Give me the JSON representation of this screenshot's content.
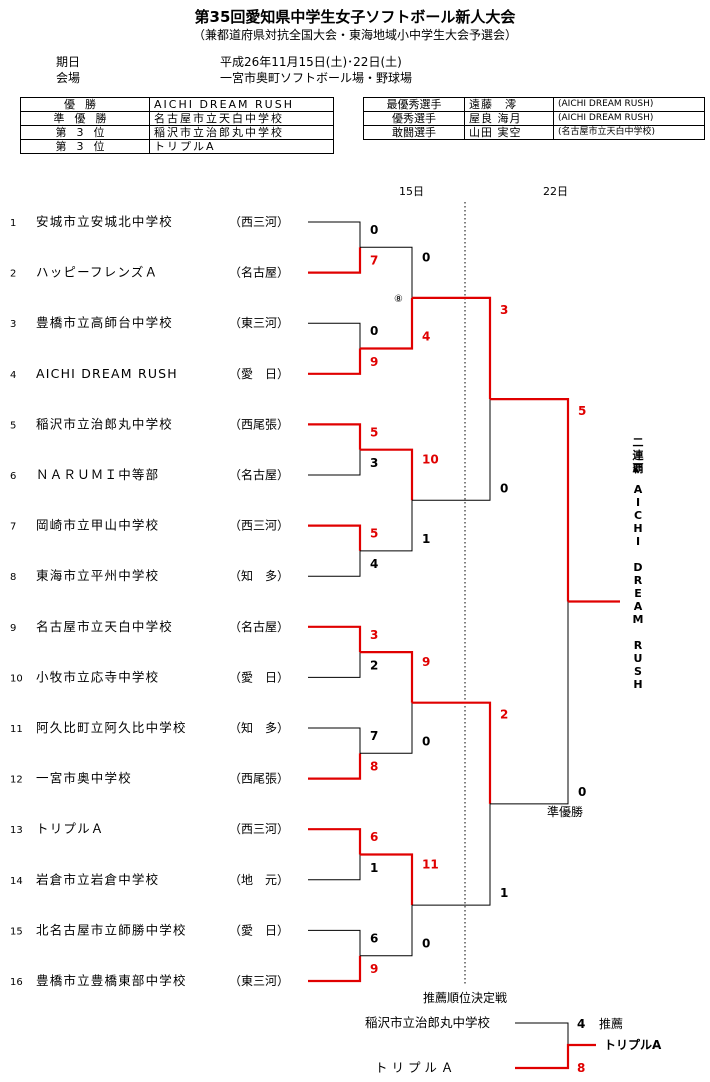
{
  "header": {
    "title": "第35回愛知県中学生女子ソフトボール新人大会",
    "subtitle": "（兼都道府県対抗全国大会・東海地域小中学生大会予選会）",
    "period_label": "期日",
    "period_value": "平成26年11月15日(土)･22日(土)",
    "venue_label": "会場",
    "venue_value": "一宮市奥町ソフトボール場・野球場"
  },
  "results": [
    {
      "rank": "優勝",
      "team": "AICHI DREAM RUSH"
    },
    {
      "rank": "準優勝",
      "team": "名古屋市立天白中学校"
    },
    {
      "rank": "第3位",
      "team": "稲沢市立治郎丸中学校"
    },
    {
      "rank": "第3位",
      "team": "トリプルA"
    }
  ],
  "awards": [
    {
      "award": "最優秀選手",
      "player": "遠藤　澪",
      "team": "(AICHI DREAM RUSH)"
    },
    {
      "award": "優秀選手",
      "player": "屋良 海月",
      "team": "(AICHI DREAM RUSH)"
    },
    {
      "award": "敢闘選手",
      "player": "山田 実空",
      "team": "(名古屋市立天白中学校)"
    }
  ],
  "day_labels": {
    "day1": "15日",
    "day2": "22日"
  },
  "teams": [
    {
      "no": "1",
      "name": "安城市立安城北中学校",
      "region": "（西三河）"
    },
    {
      "no": "2",
      "name": "ハッピーフレンズＡ",
      "region": "（名古屋）"
    },
    {
      "no": "3",
      "name": "豊橋市立高師台中学校",
      "region": "（東三河）"
    },
    {
      "no": "4",
      "name": "AICHI DREAM RUSH",
      "region": "（愛　日）"
    },
    {
      "no": "5",
      "name": "稲沢市立治郎丸中学校",
      "region": "（西尾張）"
    },
    {
      "no": "6",
      "name": "ＮＡＲＵＭＩ中等部",
      "region": "（名古屋）"
    },
    {
      "no": "7",
      "name": "岡崎市立甲山中学校",
      "region": "（西三河）"
    },
    {
      "no": "8",
      "name": "東海市立平州中学校",
      "region": "（知　多）"
    },
    {
      "no": "9",
      "name": "名古屋市立天白中学校",
      "region": "（名古屋）"
    },
    {
      "no": "10",
      "name": "小牧市立応寺中学校",
      "region": "（愛　日）"
    },
    {
      "no": "11",
      "name": "阿久比町立阿久比中学校",
      "region": "（知　多）"
    },
    {
      "no": "12",
      "name": "一宮市奥中学校",
      "region": "（西尾張）"
    },
    {
      "no": "13",
      "name": "トリプルＡ",
      "region": "（西三河）"
    },
    {
      "no": "14",
      "name": "岩倉市立岩倉中学校",
      "region": "（地　元）"
    },
    {
      "no": "15",
      "name": "北名古屋市立師勝中学校",
      "region": "（愛　日）"
    },
    {
      "no": "16",
      "name": "豊橋市立豊橋東部中学校",
      "region": "（東三河）"
    }
  ],
  "scores": {
    "r1": [
      "0",
      "7",
      "0",
      "9",
      "5",
      "3",
      "5",
      "4",
      "3",
      "2",
      "7",
      "8",
      "6",
      "1",
      "6",
      "9"
    ],
    "r2": [
      "0",
      "4",
      "10",
      "1",
      "9",
      "0",
      "11",
      "0"
    ],
    "r3": [
      "3",
      "0",
      "2",
      "1"
    ],
    "r4": [
      "5",
      "0"
    ]
  },
  "mark": "⑧",
  "champion_label": "二連覇",
  "champion_name": "AICHI DREAM RUSH",
  "runner_up_label": "準優勝",
  "third_place": {
    "title": "推薦順位決定戦",
    "team_a": "稲沢市立治郎丸中学校",
    "team_b": "ト リ プ ル Ａ",
    "score_a": "4",
    "score_b": "8",
    "label_a": "推薦",
    "winner": "トリプルA"
  },
  "colors": {
    "win": "#e00000",
    "line": "#000000"
  }
}
